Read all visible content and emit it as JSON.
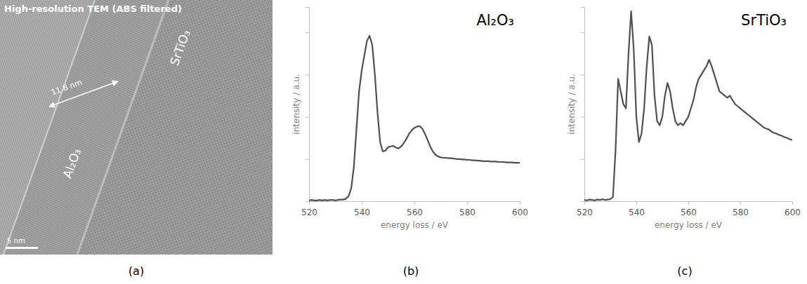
{
  "chart_data": [
    {
      "type": "image",
      "title": "High-resolution TEM (ABS filtered)",
      "annotations": [
        "11.8 nm",
        "Al₂O₃",
        "SrTiO₃",
        "5 nm"
      ],
      "caption": "(a)"
    },
    {
      "type": "line",
      "title": "Al₂O₃",
      "x_label": "energy loss / eV",
      "y_label": "intensity / a.u.",
      "x": [
        520,
        521,
        522,
        523,
        524,
        525,
        526,
        527,
        528,
        529,
        530,
        531,
        532,
        533,
        534,
        535,
        536,
        537,
        538,
        539,
        540,
        541,
        542,
        543,
        544,
        545,
        546,
        547,
        548,
        549,
        550,
        551,
        552,
        553,
        554,
        555,
        556,
        557,
        558,
        559,
        560,
        561,
        562,
        563,
        564,
        565,
        566,
        567,
        568,
        569,
        570,
        571,
        572,
        573,
        574,
        575,
        576,
        577,
        578,
        579,
        580,
        581,
        582,
        583,
        584,
        585,
        586,
        587,
        588,
        589,
        590,
        591,
        592,
        593,
        594,
        595,
        596,
        597,
        598,
        599,
        600
      ],
      "series": [
        {
          "color": "#505050",
          "values": [
            0.02,
            0.03,
            0.02,
            0.02,
            0.03,
            0.02,
            0.03,
            0.02,
            0.03,
            0.03,
            0.02,
            0.03,
            0.04,
            0.04,
            0.06,
            0.12,
            0.3,
            0.8,
            1.7,
            2.6,
            3.1,
            3.45,
            3.8,
            3.92,
            3.7,
            3.0,
            2.1,
            1.4,
            1.18,
            1.2,
            1.28,
            1.3,
            1.31,
            1.27,
            1.25,
            1.3,
            1.38,
            1.48,
            1.6,
            1.68,
            1.74,
            1.77,
            1.78,
            1.72,
            1.6,
            1.45,
            1.3,
            1.18,
            1.1,
            1.06,
            1.04,
            1.03,
            1.03,
            1.02,
            1.02,
            1.01,
            1.0,
            1.0,
            0.99,
            0.99,
            0.98,
            0.98,
            0.97,
            0.97,
            0.96,
            0.96,
            0.95,
            0.95,
            0.95,
            0.94,
            0.94,
            0.94,
            0.93,
            0.93,
            0.93,
            0.92,
            0.92,
            0.92,
            0.91,
            0.91,
            0.91
          ]
        }
      ],
      "xlim": [
        520,
        600
      ],
      "xticks": [
        520,
        540,
        560,
        580,
        600
      ],
      "ylim": [
        0,
        4.6
      ],
      "yticks": [
        1,
        2,
        3,
        4
      ],
      "tick_labels": "x",
      "caption": "(b)"
    },
    {
      "type": "line",
      "title": "SrTiO₃",
      "x_label": "energy loss / eV",
      "y_label": "intensity / a.u.",
      "x": [
        520,
        521,
        522,
        523,
        524,
        525,
        526,
        527,
        528,
        529,
        530,
        531,
        532,
        533,
        534,
        535,
        536,
        537,
        538,
        539,
        540,
        541,
        542,
        543,
        544,
        545,
        546,
        547,
        548,
        549,
        550,
        551,
        552,
        553,
        554,
        555,
        556,
        557,
        558,
        559,
        560,
        561,
        562,
        563,
        564,
        565,
        566,
        567,
        568,
        569,
        570,
        571,
        572,
        573,
        574,
        575,
        576,
        577,
        578,
        579,
        580,
        581,
        582,
        583,
        584,
        585,
        586,
        587,
        588,
        589,
        590,
        591,
        592,
        593,
        594,
        595,
        596,
        597,
        598,
        599,
        600
      ],
      "series": [
        {
          "color": "#505050",
          "values": [
            0.03,
            0.02,
            0.04,
            0.03,
            0.02,
            0.04,
            0.03,
            0.05,
            0.03,
            0.04,
            0.05,
            0.1,
            1.2,
            2.9,
            2.6,
            2.3,
            2.2,
            3.5,
            4.5,
            3.6,
            2.0,
            1.4,
            1.6,
            2.2,
            3.2,
            3.9,
            3.7,
            2.5,
            1.9,
            1.8,
            2.0,
            2.5,
            2.8,
            2.6,
            2.2,
            1.9,
            1.8,
            1.85,
            1.8,
            1.9,
            2.0,
            2.2,
            2.4,
            2.7,
            2.9,
            3.0,
            3.1,
            3.2,
            3.35,
            3.2,
            3.0,
            2.8,
            2.6,
            2.55,
            2.5,
            2.45,
            2.5,
            2.4,
            2.3,
            2.25,
            2.2,
            2.15,
            2.1,
            2.05,
            2.0,
            1.95,
            1.9,
            1.85,
            1.8,
            1.75,
            1.72,
            1.7,
            1.65,
            1.62,
            1.6,
            1.57,
            1.55,
            1.52,
            1.5,
            1.47,
            1.45
          ]
        }
      ],
      "xlim": [
        520,
        600
      ],
      "xticks": [
        520,
        540,
        560,
        580,
        600
      ],
      "ylim": [
        0,
        4.6
      ],
      "yticks": [
        1,
        2,
        3,
        4
      ],
      "tick_labels": "x",
      "caption": "(c)"
    }
  ]
}
